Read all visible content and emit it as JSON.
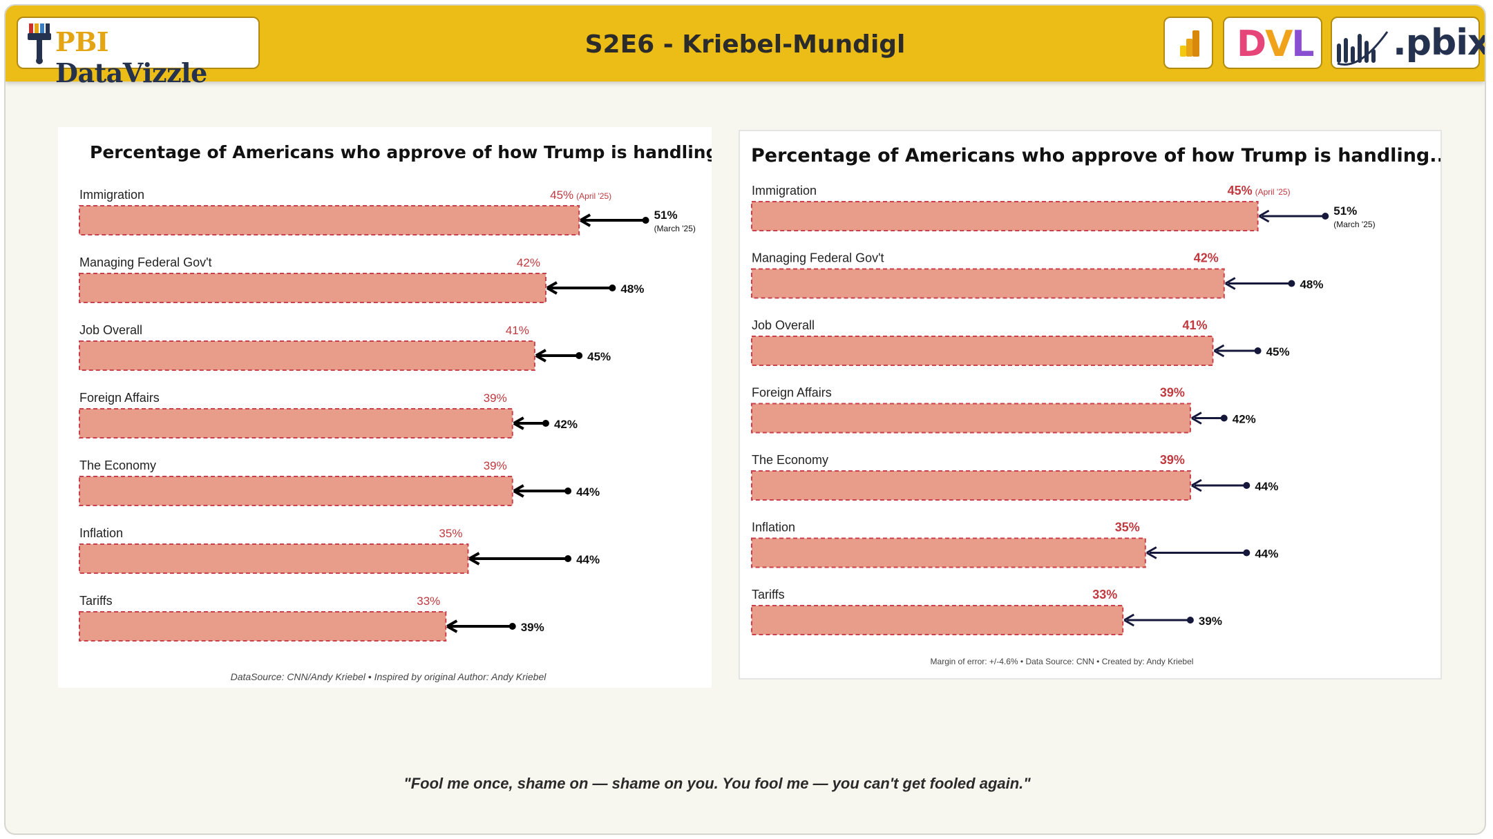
{
  "header": {
    "logo_pbi": "PBI",
    "logo_dv": "DataVizzle",
    "title": "S2E6 - Kriebel-Mundigl",
    "dvl_letters": [
      "D",
      "V",
      "L"
    ],
    "pbix_label": ".pbix"
  },
  "colors": {
    "header_bg": "#ecbd17",
    "bar_fill": "#e89d8a",
    "bar_border": "#c9404a",
    "value_red": "#c0393f",
    "arrow_left": "#000000",
    "arrow_right": "#15183b"
  },
  "quote": "\"Fool me once, shame on — shame on you. You fool me — you can't get fooled again.\"",
  "chart_data": [
    {
      "type": "bar",
      "title": "Percentage of Americans who approve of how Trump is handling......",
      "categories": [
        "Immigration",
        "Managing Federal Gov't",
        "Job Overall",
        "Foreign Affairs",
        "The Economy",
        "Inflation",
        "Tariffs"
      ],
      "series": [
        {
          "name": "April '25",
          "values": [
            45,
            42,
            41,
            39,
            39,
            35,
            33
          ]
        },
        {
          "name": "March '25",
          "values": [
            51,
            48,
            45,
            42,
            44,
            44,
            39
          ]
        }
      ],
      "first_value_notes": {
        "current": "(April '25)",
        "previous": "(March '25)"
      },
      "footer": "DataSource: CNN/Andy Kriebel • Inspired by original Author: Andy Kriebel",
      "xlim": [
        0,
        100
      ]
    },
    {
      "type": "bar",
      "title": "Percentage of Americans who approve of how Trump is handling...",
      "categories": [
        "Immigration",
        "Managing Federal Gov't",
        "Job Overall",
        "Foreign Affairs",
        "The Economy",
        "Inflation",
        "Tariffs"
      ],
      "series": [
        {
          "name": "April '25",
          "values": [
            45,
            42,
            41,
            39,
            39,
            35,
            33
          ]
        },
        {
          "name": "March '25",
          "values": [
            51,
            48,
            45,
            42,
            44,
            44,
            39
          ]
        }
      ],
      "first_value_notes": {
        "current": "(April '25)",
        "previous": "(March '25)"
      },
      "footer": "Margin of error: +/-4.6% • Data Source: CNN • Created by: Andy Kriebel",
      "xlim": [
        0,
        100
      ]
    }
  ]
}
